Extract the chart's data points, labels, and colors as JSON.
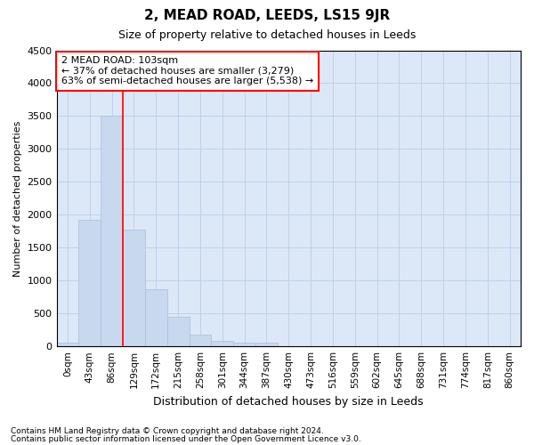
{
  "title": "2, MEAD ROAD, LEEDS, LS15 9JR",
  "subtitle": "Size of property relative to detached houses in Leeds",
  "xlabel": "Distribution of detached houses by size in Leeds",
  "ylabel": "Number of detached properties",
  "bar_color": "#c8d8ef",
  "bar_edge_color": "#a8bedd",
  "grid_color": "#c0d0e8",
  "bg_color": "#dce8f8",
  "categories": [
    "0sqm",
    "43sqm",
    "86sqm",
    "129sqm",
    "172sqm",
    "215sqm",
    "258sqm",
    "301sqm",
    "344sqm",
    "387sqm",
    "430sqm",
    "473sqm",
    "516sqm",
    "559sqm",
    "602sqm",
    "645sqm",
    "688sqm",
    "731sqm",
    "774sqm",
    "817sqm",
    "860sqm"
  ],
  "values": [
    50,
    1920,
    3500,
    1780,
    870,
    450,
    175,
    90,
    60,
    50,
    0,
    0,
    0,
    0,
    0,
    0,
    0,
    0,
    0,
    0,
    0
  ],
  "ylim": [
    0,
    4500
  ],
  "yticks": [
    0,
    500,
    1000,
    1500,
    2000,
    2500,
    3000,
    3500,
    4000,
    4500
  ],
  "red_line_x": 2.5,
  "annotation_text": "2 MEAD ROAD: 103sqm\n← 37% of detached houses are smaller (3,279)\n63% of semi-detached houses are larger (5,538) →",
  "annotation_box_color": "white",
  "annotation_box_edge": "red",
  "footnote1": "Contains HM Land Registry data © Crown copyright and database right 2024.",
  "footnote2": "Contains public sector information licensed under the Open Government Licence v3.0."
}
